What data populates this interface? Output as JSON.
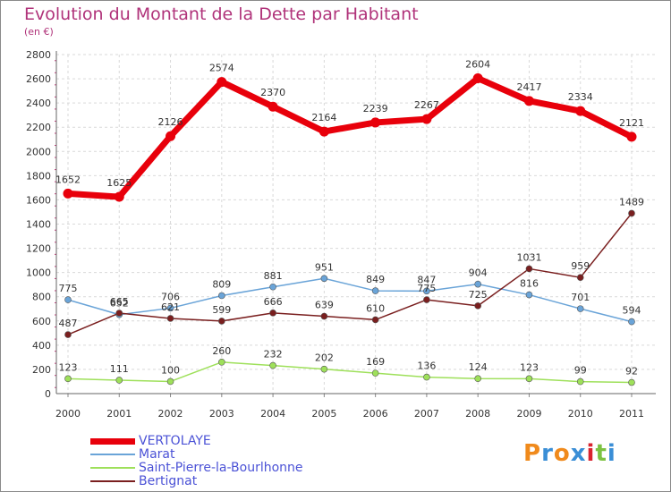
{
  "title": "Evolution du Montant de la Dette par Habitant",
  "subtitle": "(en €)",
  "logo": {
    "text": "Proxiti",
    "colors": [
      "#f08a1c",
      "#3a8ed6",
      "#f08a1c",
      "#3a8ed6",
      "#d9232e",
      "#7cc242",
      "#3a8ed6"
    ]
  },
  "chart_data": {
    "type": "line",
    "title": "Evolution du Montant de la Dette par Habitant",
    "subtitle": "(en €)",
    "xlabel": "",
    "ylabel": "(en €)",
    "ylim": [
      0,
      2800
    ],
    "yticks": [
      0,
      200,
      400,
      600,
      800,
      1000,
      1200,
      1400,
      1600,
      1800,
      2000,
      2200,
      2400,
      2600,
      2800
    ],
    "x": [
      "2000",
      "2001",
      "2002",
      "2003",
      "2004",
      "2005",
      "2006",
      "2007",
      "2008",
      "2009",
      "2010",
      "2011"
    ],
    "grid": true,
    "legend_position": "bottom-left",
    "series": [
      {
        "name": "VERTOLAYE",
        "color": "#e8000b",
        "values": [
          1652,
          1625,
          2126,
          2574,
          2370,
          2164,
          2239,
          2267,
          2604,
          2417,
          2334,
          2121
        ]
      },
      {
        "name": "Marat",
        "color": "#6aa4d8",
        "values": [
          775,
          652,
          706,
          809,
          881,
          951,
          849,
          847,
          904,
          816,
          701,
          594
        ]
      },
      {
        "name": "Saint-Pierre-la-Bourlhonne",
        "color": "#9ee05a",
        "values": [
          123,
          111,
          100,
          260,
          232,
          202,
          169,
          136,
          124,
          123,
          99,
          92
        ]
      },
      {
        "name": "Bertignat",
        "color": "#7a1f1f",
        "values": [
          487,
          665,
          621,
          599,
          666,
          639,
          610,
          775,
          725,
          1031,
          959,
          1489
        ]
      }
    ]
  }
}
